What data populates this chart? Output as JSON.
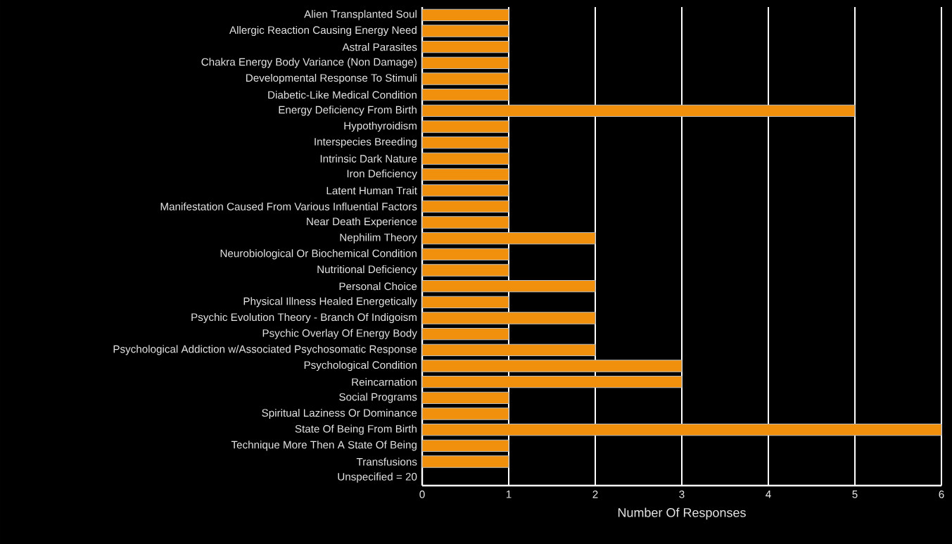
{
  "chart_data": {
    "type": "bar",
    "orientation": "horizontal",
    "xlabel": "Number Of Responses",
    "categories": [
      "Alien Transplanted Soul",
      "Allergic Reaction Causing Energy Need",
      "Astral Parasites",
      "Chakra Energy Body Variance (Non Damage)",
      "Developmental Response To Stimuli",
      "Diabetic-Like Medical Condition",
      "Energy Deficiency From Birth",
      "Hypothyroidism",
      "Interspecies Breeding",
      "Intrinsic Dark Nature",
      "Iron Deficiency",
      "Latent Human Trait",
      "Manifestation Caused From Various Influential Factors",
      "Near Death Experience",
      "Nephilim Theory",
      "Neurobiological Or Biochemical Condition",
      "Nutritional Deficiency",
      "Personal Choice",
      "Physical Illness Healed Energetically",
      "Psychic Evolution Theory - Branch Of Indigoism",
      "Psychic Overlay Of Energy Body",
      "Psychological Addiction w/Associated Psychosomatic Response",
      "Psychological Condition",
      "Reincarnation",
      "Social Programs",
      "Spiritual Laziness Or Dominance",
      "State Of Being From Birth",
      "Technique More Then A State Of Being",
      "Transfusions",
      "Unspecified = 20"
    ],
    "values": [
      1,
      1,
      1,
      1,
      1,
      1,
      5,
      1,
      1,
      1,
      1,
      1,
      1,
      1,
      2,
      1,
      1,
      2,
      1,
      2,
      1,
      2,
      3,
      3,
      1,
      1,
      6,
      1,
      1,
      null
    ],
    "color": "#f0900c",
    "xlim": [
      0,
      6
    ],
    "xticks": [
      0,
      1,
      2,
      3,
      4,
      5,
      6
    ],
    "grid": "x"
  }
}
